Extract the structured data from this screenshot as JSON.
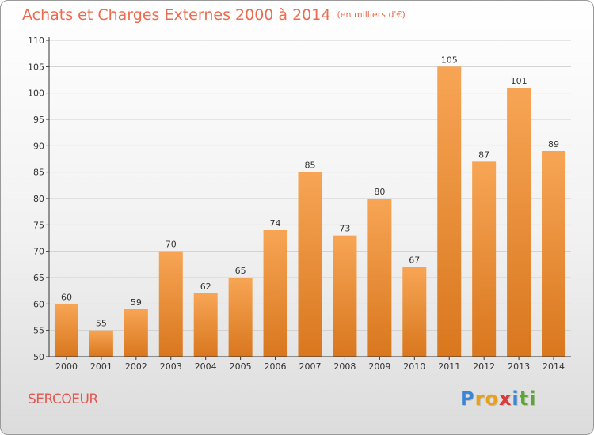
{
  "title": "Achats et Charges Externes 2000 à 2014",
  "subtitle": "(en milliers d'€)",
  "commune": "SERCOEUR",
  "logo": {
    "letters": [
      {
        "char": "P",
        "color": "#3a86d6"
      },
      {
        "char": "r",
        "color": "#e8a020"
      },
      {
        "char": "o",
        "color": "#e8a020"
      },
      {
        "char": "x",
        "color": "#d93a3a"
      },
      {
        "char": "i",
        "color": "#3a86d6"
      },
      {
        "char": "t",
        "color": "#5aa832"
      },
      {
        "char": "i",
        "color": "#5aa832"
      }
    ]
  },
  "colors": {
    "title": "#ee6a4d",
    "bar_light": "#f7a555",
    "bar_dark": "#d9771e",
    "axis": "#333333",
    "grid": "#cfcfcf"
  },
  "chart_data": {
    "type": "bar",
    "categories": [
      "2000",
      "2001",
      "2002",
      "2003",
      "2004",
      "2005",
      "2006",
      "2007",
      "2008",
      "2009",
      "2010",
      "2011",
      "2012",
      "2013",
      "2014"
    ],
    "values": [
      60,
      55,
      59,
      70,
      62,
      65,
      74,
      85,
      73,
      80,
      67,
      105,
      87,
      101,
      89
    ],
    "title": "Achats et Charges Externes 2000 à 2014",
    "ylim": [
      50,
      110
    ],
    "yticks": [
      50,
      55,
      60,
      65,
      70,
      75,
      80,
      85,
      90,
      95,
      100,
      105,
      110
    ],
    "grid": true
  }
}
